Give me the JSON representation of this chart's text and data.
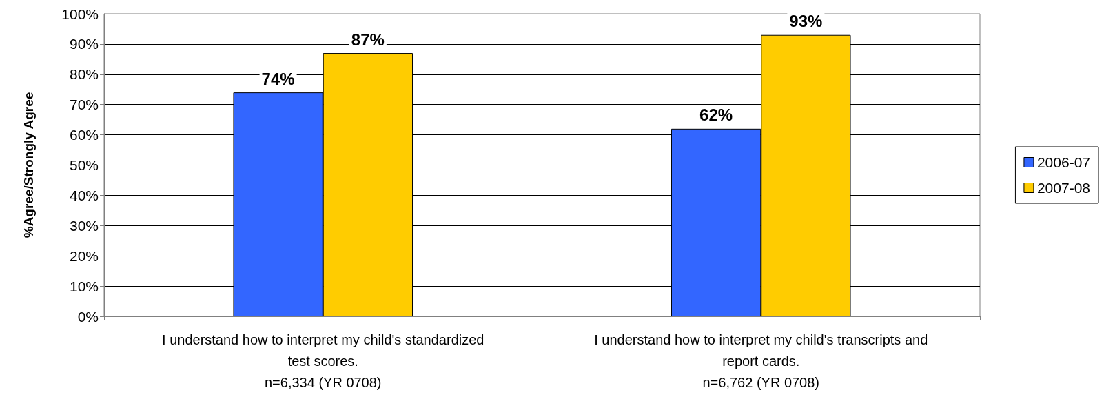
{
  "chart_data": {
    "type": "bar",
    "ylabel": "%Agree/Strongly Agree",
    "categories": [
      "I understand how to interpret my child's standardized\ntest scores.\nn=6,334 (YR 0708)",
      "I understand how to interpret my child's transcripts and\nreport cards.\nn=6,762 (YR 0708)"
    ],
    "series": [
      {
        "name": "2006-07",
        "color": "#3366ff",
        "values": [
          74,
          62
        ],
        "value_labels": [
          "74%",
          "62%"
        ]
      },
      {
        "name": "2007-08",
        "color": "#ffcc00",
        "values": [
          87,
          93
        ],
        "value_labels": [
          "87%",
          "93%"
        ]
      }
    ],
    "ylim": [
      0,
      100
    ],
    "yticks": [
      {
        "value": 0,
        "label": "0%"
      },
      {
        "value": 10,
        "label": "10%"
      },
      {
        "value": 20,
        "label": "20%"
      },
      {
        "value": 30,
        "label": "30%"
      },
      {
        "value": 40,
        "label": "40%"
      },
      {
        "value": 50,
        "label": "50%"
      },
      {
        "value": 60,
        "label": "60%"
      },
      {
        "value": 70,
        "label": "70%"
      },
      {
        "value": 80,
        "label": "80%"
      },
      {
        "value": 90,
        "label": "90%"
      },
      {
        "value": 100,
        "label": "100%"
      }
    ],
    "grid": "y",
    "legend": "right"
  }
}
